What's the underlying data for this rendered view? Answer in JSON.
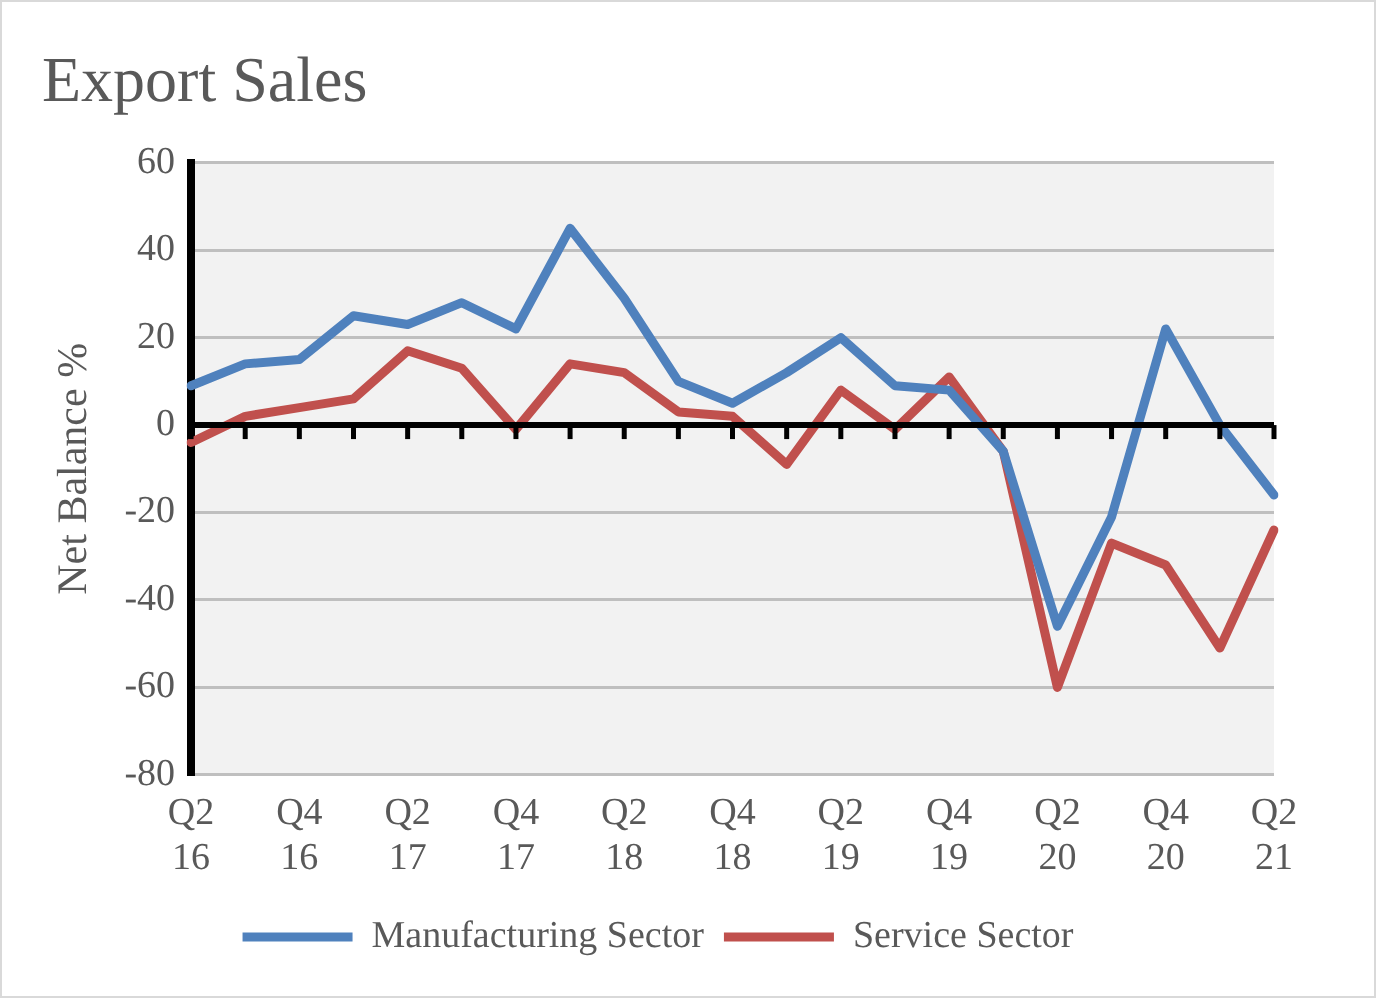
{
  "chart_data": {
    "type": "line",
    "title": "Export Sales",
    "ylabel": "Net Balance %",
    "categories": [
      "Q2 16",
      null,
      "Q4 16",
      null,
      "Q2 17",
      null,
      "Q4 17",
      null,
      "Q2 18",
      null,
      "Q4 18",
      null,
      "Q2 19",
      null,
      "Q4 19",
      null,
      "Q2 20",
      null,
      "Q4 20",
      null,
      "Q2 21"
    ],
    "series": [
      {
        "name": "Manufacturing Sector",
        "color": "#4f81bd",
        "values": [
          9,
          14,
          15,
          25,
          23,
          28,
          22,
          45,
          29,
          10,
          5,
          12,
          20,
          9,
          8,
          -6,
          -46,
          -21,
          22,
          0,
          -16
        ]
      },
      {
        "name": "Service Sector",
        "color": "#c0504d",
        "values": [
          -4,
          2,
          4,
          6,
          17,
          13,
          -1,
          14,
          12,
          3,
          2,
          -9,
          8,
          -1,
          11,
          -6,
          -60,
          -27,
          -32,
          -51,
          -24
        ]
      }
    ],
    "ylim": [
      -80,
      60
    ],
    "yticks": [
      -80,
      -60,
      -40,
      -20,
      0,
      20,
      40,
      60
    ],
    "grid": "y",
    "legend": "bottom",
    "marker": "none",
    "line_style": "solid"
  }
}
